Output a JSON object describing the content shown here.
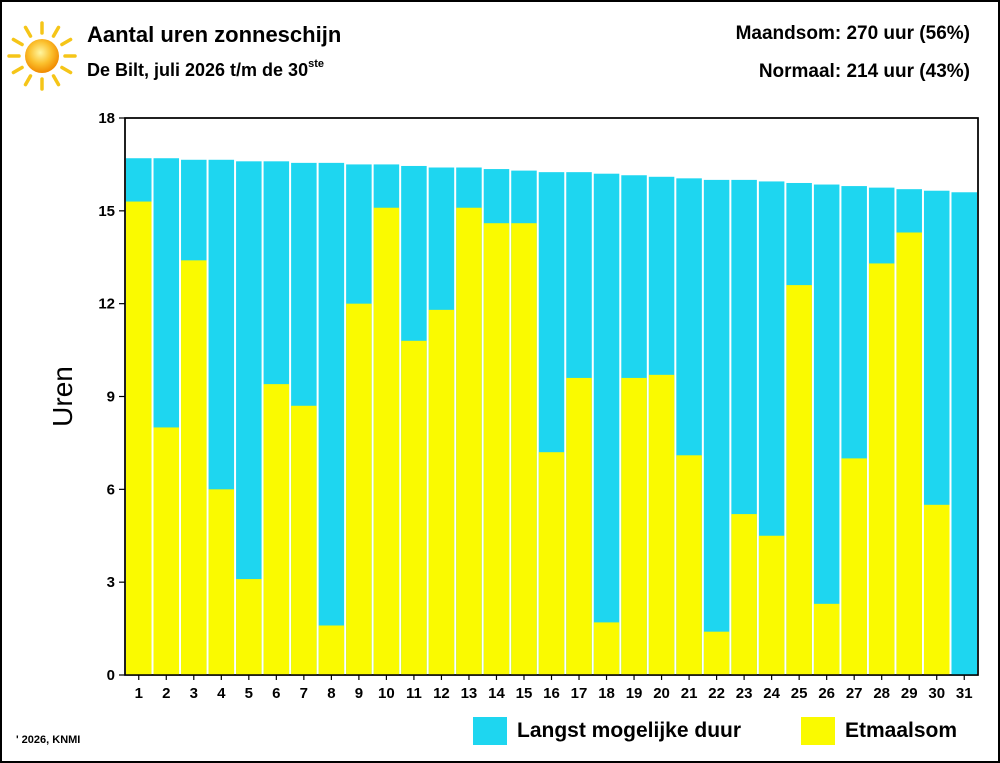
{
  "header": {
    "title": "Aantal uren zonneschijn",
    "subtitle_main": "De Bilt, juli 2026 t/m de 30",
    "subtitle_sup": "ste",
    "stat_month": "Maandsom: 270 uur (56%)",
    "stat_normal": "Normaal: 214 uur (43%)"
  },
  "icons": {
    "sun": "sun-icon"
  },
  "copyright": "' 2026, KNMI",
  "colors": {
    "max_duration": "#1ed6f0",
    "daily_sum": "#fafa00",
    "sun_body": "#f8a800",
    "sun_rays": "#f5c518"
  },
  "chart_data": {
    "type": "bar",
    "ylabel": "Uren",
    "xlabel": "",
    "ylim": [
      0,
      18
    ],
    "yticks": [
      0,
      3,
      6,
      9,
      12,
      15,
      18
    ],
    "categories": [
      "1",
      "2",
      "3",
      "4",
      "5",
      "6",
      "7",
      "8",
      "9",
      "10",
      "11",
      "12",
      "13",
      "14",
      "15",
      "16",
      "17",
      "18",
      "19",
      "20",
      "21",
      "22",
      "23",
      "24",
      "25",
      "26",
      "27",
      "28",
      "29",
      "30",
      "31"
    ],
    "series": [
      {
        "name": "Langst mogelijke duur",
        "values": [
          16.7,
          16.7,
          16.65,
          16.65,
          16.6,
          16.6,
          16.55,
          16.55,
          16.5,
          16.5,
          16.45,
          16.4,
          16.4,
          16.35,
          16.3,
          16.25,
          16.25,
          16.2,
          16.15,
          16.1,
          16.05,
          16.0,
          16.0,
          15.95,
          15.9,
          15.85,
          15.8,
          15.75,
          15.7,
          15.65,
          15.6
        ]
      },
      {
        "name": "Etmaalsom",
        "values": [
          15.3,
          8.0,
          13.4,
          6.0,
          3.1,
          9.4,
          8.7,
          1.6,
          12.0,
          15.1,
          10.8,
          11.8,
          15.1,
          14.6,
          14.6,
          7.2,
          9.6,
          1.7,
          9.6,
          9.7,
          7.1,
          1.4,
          5.2,
          4.5,
          12.6,
          2.3,
          7.0,
          13.3,
          14.3,
          5.5,
          0
        ]
      }
    ],
    "legend": [
      "Langst mogelijke duur",
      "Etmaalsom"
    ],
    "legend_position": "bottom-right",
    "grid": false
  }
}
